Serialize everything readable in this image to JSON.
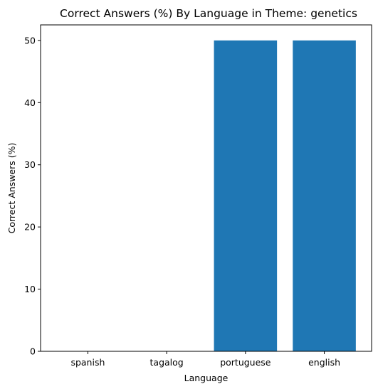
{
  "chart_data": {
    "type": "bar",
    "title": "Correct Answers (%) By Language in Theme: genetics",
    "xlabel": "Language",
    "ylabel": "Correct Answers (%)",
    "categories": [
      "spanish",
      "tagalog",
      "portuguese",
      "english"
    ],
    "values": [
      0,
      0,
      50,
      50
    ],
    "ylim": [
      0,
      52.5
    ],
    "yticks": [
      "0",
      "10",
      "20",
      "30",
      "40",
      "50"
    ],
    "bar_color": "#1f77b4",
    "grid": false,
    "legend": "none"
  }
}
